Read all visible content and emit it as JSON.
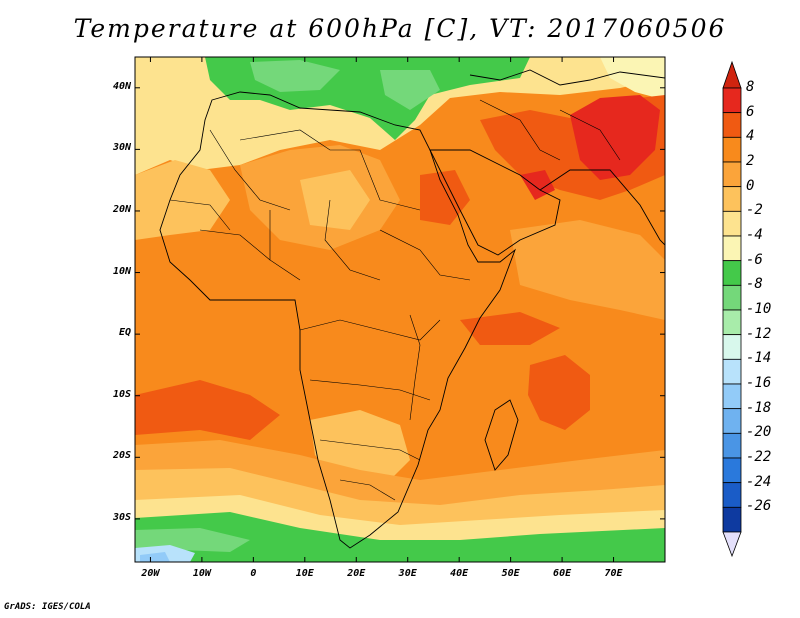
{
  "title": "Temperature at 600hPa [C], VT: 2017060506",
  "credit": "GrADS: IGES/COLA",
  "map": {
    "projection": "lat-lon",
    "lon_range": [
      -23,
      80
    ],
    "lat_range": [
      -37,
      45
    ],
    "lat_ticks": [
      {
        "value": 40,
        "label": "40N"
      },
      {
        "value": 30,
        "label": "30N"
      },
      {
        "value": 20,
        "label": "20N"
      },
      {
        "value": 10,
        "label": "10N"
      },
      {
        "value": 0,
        "label": "EQ"
      },
      {
        "value": -10,
        "label": "10S"
      },
      {
        "value": -20,
        "label": "20S"
      },
      {
        "value": -30,
        "label": "30S"
      }
    ],
    "lon_ticks": [
      {
        "value": -20,
        "label": "20W"
      },
      {
        "value": -10,
        "label": "10W"
      },
      {
        "value": 0,
        "label": "0"
      },
      {
        "value": 10,
        "label": "10E"
      },
      {
        "value": 20,
        "label": "20E"
      },
      {
        "value": 30,
        "label": "30E"
      },
      {
        "value": 40,
        "label": "40E"
      },
      {
        "value": 50,
        "label": "50E"
      },
      {
        "value": 60,
        "label": "60E"
      },
      {
        "value": 70,
        "label": "70E"
      }
    ]
  },
  "colorbar": {
    "levels": [
      "8",
      "6",
      "4",
      "2",
      "0",
      "-2",
      "-4",
      "-6",
      "-8",
      "-10",
      "-12",
      "-14",
      "-16",
      "-18",
      "-20",
      "-22",
      "-24",
      "-26"
    ],
    "colors": [
      "#e6281e",
      "#f05a12",
      "#f88a1c",
      "#fba43a",
      "#fdc25c",
      "#fde38f",
      "#fbf5b4",
      "#44c94a",
      "#74d87a",
      "#a8ecaa",
      "#d8f8ec",
      "#b8e2fb",
      "#92cbf8",
      "#6fb2f0",
      "#4a95e5",
      "#2a79dc",
      "#1a5cc7",
      "#0e3aa0",
      "#081e6a"
    ],
    "top_arrow_color": "#d0240f",
    "bottom_arrow_color": "#e4e0fb"
  }
}
